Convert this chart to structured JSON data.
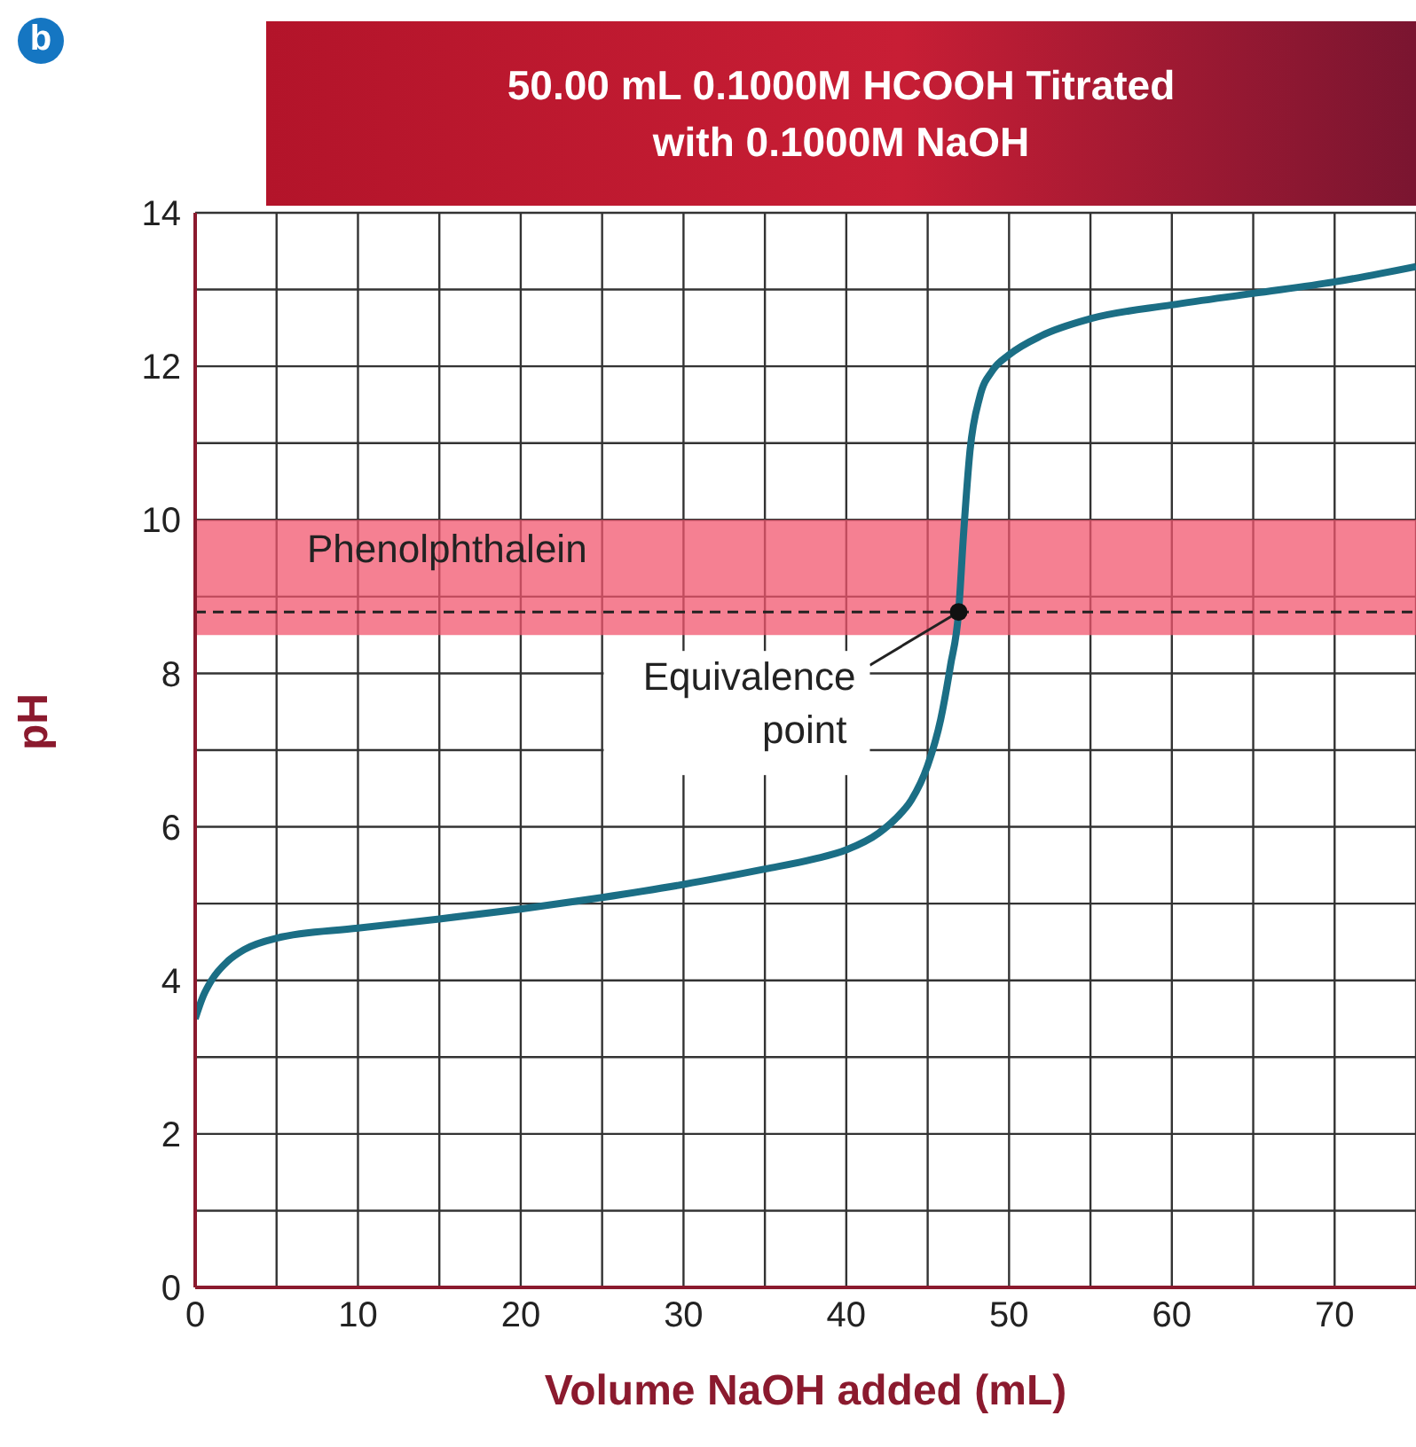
{
  "chart_data": {
    "type": "line",
    "title": "50.00 mL 0.1000M HCOOH Titrated with 0.1000M NaOH",
    "xlabel": "Volume NaOH added (mL)",
    "ylabel": "pH",
    "x": [
      0,
      0.5,
      1,
      2,
      3,
      5,
      10,
      15,
      20,
      25,
      30,
      35,
      38,
      40,
      42,
      43,
      44,
      45,
      45.8,
      46.4,
      46.9,
      47.2,
      47.6,
      48.2,
      49,
      50,
      52,
      55,
      60,
      65,
      70,
      75
    ],
    "series": [
      {
        "color": "#1b6e85",
        "values": [
          3.5,
          3.8,
          4.0,
          4.25,
          4.4,
          4.55,
          4.68,
          4.8,
          4.93,
          5.08,
          5.25,
          5.45,
          5.58,
          5.7,
          5.92,
          6.1,
          6.35,
          6.8,
          7.4,
          8.1,
          8.8,
          9.8,
          10.9,
          11.6,
          11.95,
          12.15,
          12.4,
          12.62,
          12.8,
          12.95,
          13.1,
          13.3
        ]
      }
    ],
    "xlim": [
      0,
      75
    ],
    "ylim": [
      0,
      14
    ],
    "xticks": [
      0,
      {
        "value": 5,
        "label": null
      },
      10,
      {
        "value": 15,
        "label": null
      },
      20,
      {
        "value": 25,
        "label": null
      },
      30,
      {
        "value": 35,
        "label": null
      },
      40,
      {
        "value": 45,
        "label": null
      },
      50,
      {
        "value": 55,
        "label": null
      },
      60,
      {
        "value": 65,
        "label": null
      },
      70,
      {
        "value": 75,
        "label": null
      }
    ],
    "yticks": [
      0,
      {
        "value": 1,
        "label": null
      },
      2,
      {
        "value": 3,
        "label": null
      },
      4,
      {
        "value": 5,
        "label": null
      },
      6,
      {
        "value": 7,
        "label": null
      },
      8,
      {
        "value": 9,
        "label": null
      },
      10,
      {
        "value": 11,
        "label": null
      },
      12,
      {
        "value": 13,
        "label": null
      },
      14
    ],
    "grid": true,
    "marker": "none",
    "line_style": "solid",
    "legend": false,
    "bands": [
      {
        "axis": "y",
        "from": 8.5,
        "to": 10,
        "label": "Phenolphthalein",
        "color": "#f2566e"
      }
    ],
    "ref_lines": [
      {
        "axis": "y",
        "value": 8.8,
        "line_style": "dashed",
        "color": "#222222"
      }
    ],
    "annotations": [
      "b",
      {
        "text": "Equivalence point",
        "x": 46.9,
        "y": 8.8
      }
    ]
  }
}
